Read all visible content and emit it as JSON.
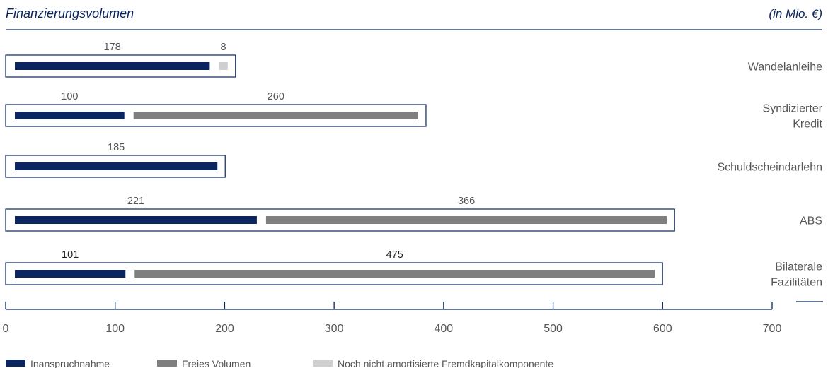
{
  "header": {
    "title": "Finanzierungsvolumen",
    "unit": "(in Mio. €)"
  },
  "colors": {
    "Inanspruchnahme": "#0b2560",
    "Freies Volumen": "#7f7f7f",
    "Noch nicht amortisierte Fremdkapitalkomponente": "#cfcfcf",
    "frame": "#0b2560",
    "axis": "#0b2560"
  },
  "chart_data": {
    "type": "bar",
    "orientation": "horizontal",
    "stacked": true,
    "title": "Finanzierungsvolumen",
    "unit": "(in Mio. €)",
    "categories": [
      [
        "Wandelanleihe"
      ],
      [
        "Syndizierter",
        "Kredit"
      ],
      [
        "Schuldscheindarlehn"
      ],
      [
        "ABS"
      ],
      [
        "Bilaterale",
        "Fazilitäten"
      ]
    ],
    "series": [
      {
        "name": "Inanspruchnahme",
        "values": [
          178,
          100,
          185,
          221,
          101
        ]
      },
      {
        "name": "Freies Volumen",
        "values": [
          0,
          260,
          0,
          366,
          475
        ]
      },
      {
        "name": "Noch nicht amortisierte Fremdkapitalkomponente",
        "values": [
          8,
          0,
          0,
          0,
          0
        ]
      }
    ],
    "xlim": [
      0,
      700
    ],
    "xticks": [
      "0",
      "100",
      "200",
      "300",
      "400",
      "500",
      "600",
      "700"
    ],
    "legend_position": "bottom-left",
    "grid": false
  }
}
